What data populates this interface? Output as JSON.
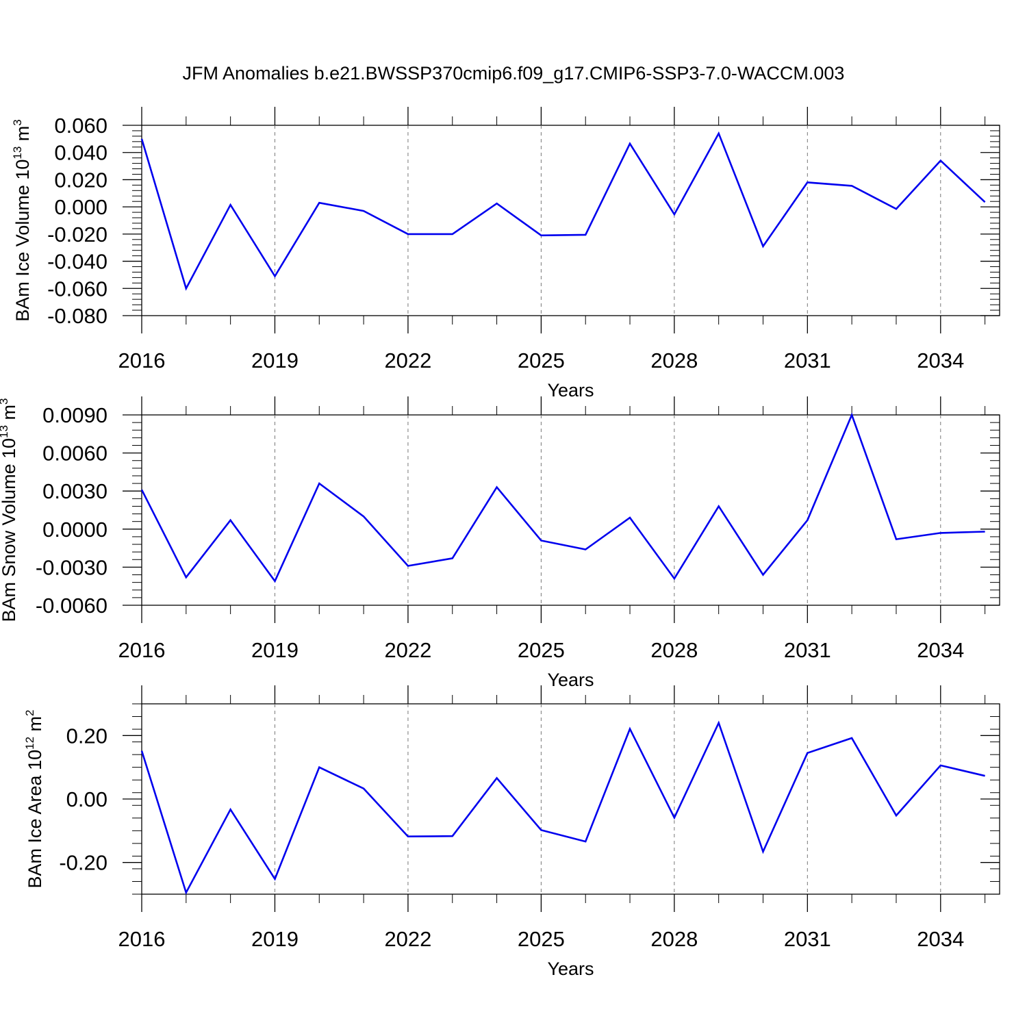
{
  "title": "JFM Anomalies b.e21.BWSSP370cmip6.f09_g17.CMIP6-SSP3-7.0-WACCM.003",
  "chart_data": [
    {
      "type": "line",
      "xlabel": "Years",
      "ylabel": {
        "text": "BAm Ice Volume 10",
        "exp": "13",
        "unit": " m",
        "unit_exp": "3"
      },
      "xlim": [
        2016,
        2035.33
      ],
      "ylim": [
        -0.08,
        0.06
      ],
      "x_ticks": [
        2016,
        2019,
        2022,
        2025,
        2028,
        2031,
        2034
      ],
      "x_tick_labels": [
        "2016",
        "2019",
        "2022",
        "2025",
        "2028",
        "2031",
        "2034"
      ],
      "y_ticks": [
        0.06,
        0.04,
        0.02,
        0.0,
        -0.02,
        -0.04,
        -0.06,
        -0.08
      ],
      "y_tick_labels": [
        "0.060",
        "0.040",
        "0.020",
        "0.000",
        "-0.020",
        "-0.040",
        "-0.060",
        "-0.080"
      ],
      "grid_x": true,
      "line_color": "#0000ee",
      "series": [
        {
          "x": [
            2016,
            2017,
            2018,
            2019,
            2020,
            2021,
            2022,
            2023,
            2024,
            2025,
            2026,
            2027,
            2028,
            2029,
            2030,
            2031,
            2032,
            2033,
            2034,
            2035
          ],
          "values": [
            0.05,
            -0.06,
            0.0015,
            -0.051,
            0.003,
            -0.003,
            -0.02,
            -0.02,
            0.0025,
            -0.021,
            -0.0205,
            0.0465,
            -0.0055,
            0.054,
            -0.029,
            0.018,
            0.0155,
            -0.0015,
            0.034,
            0.0035
          ]
        }
      ]
    },
    {
      "type": "line",
      "xlabel": "Years",
      "ylabel": {
        "text": "BAm Snow Volume 10",
        "exp": "13",
        "unit": " m",
        "unit_exp": "3"
      },
      "xlim": [
        2016,
        2035.33
      ],
      "ylim": [
        -0.006,
        0.009
      ],
      "x_ticks": [
        2016,
        2019,
        2022,
        2025,
        2028,
        2031,
        2034
      ],
      "x_tick_labels": [
        "2016",
        "2019",
        "2022",
        "2025",
        "2028",
        "2031",
        "2034"
      ],
      "y_ticks": [
        0.009,
        0.006,
        0.003,
        0.0,
        -0.003,
        -0.006
      ],
      "y_tick_labels": [
        "0.0090",
        "0.0060",
        "0.0030",
        "0.0000",
        "-0.0030",
        "-0.0060"
      ],
      "grid_x": true,
      "line_color": "#0000ee",
      "series": [
        {
          "x": [
            2016,
            2017,
            2018,
            2019,
            2020,
            2021,
            2022,
            2023,
            2024,
            2025,
            2026,
            2027,
            2028,
            2029,
            2030,
            2031,
            2032,
            2033,
            2034,
            2035
          ],
          "values": [
            0.0031,
            -0.0038,
            0.0007,
            -0.0041,
            0.0036,
            0.001,
            -0.0029,
            -0.0023,
            0.0033,
            -0.0009,
            -0.0016,
            0.0009,
            -0.0039,
            0.0018,
            -0.0036,
            0.0007,
            0.009,
            -0.0008,
            -0.0003,
            -0.0002
          ]
        }
      ]
    },
    {
      "type": "line",
      "xlabel": "Years",
      "ylabel": {
        "text": "BAm Ice Area 10",
        "exp": "12",
        "unit": " m",
        "unit_exp": "2"
      },
      "xlim": [
        2016,
        2035.33
      ],
      "ylim": [
        -0.3,
        0.3
      ],
      "x_ticks": [
        2016,
        2019,
        2022,
        2025,
        2028,
        2031,
        2034
      ],
      "x_tick_labels": [
        "2016",
        "2019",
        "2022",
        "2025",
        "2028",
        "2031",
        "2034"
      ],
      "y_ticks": [
        0.2,
        0.0,
        -0.2
      ],
      "y_tick_labels": [
        "0.20",
        "0.00",
        "-0.20"
      ],
      "grid_x": true,
      "line_color": "#0000ee",
      "series": [
        {
          "x": [
            2016,
            2017,
            2018,
            2019,
            2020,
            2021,
            2022,
            2023,
            2024,
            2025,
            2026,
            2027,
            2028,
            2029,
            2030,
            2031,
            2032,
            2033,
            2034,
            2035
          ],
          "values": [
            0.152,
            -0.295,
            -0.033,
            -0.252,
            0.1,
            0.033,
            -0.118,
            -0.117,
            0.066,
            -0.098,
            -0.134,
            0.221,
            -0.059,
            0.24,
            -0.166,
            0.145,
            0.192,
            -0.052,
            0.106,
            0.073
          ]
        }
      ]
    }
  ]
}
